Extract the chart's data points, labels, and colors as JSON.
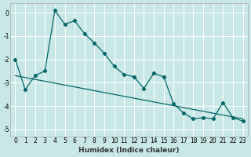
{
  "xlabel": "Humidex (Indice chaleur)",
  "background_color": "#c8e8e8",
  "grid_color": "#ffffff",
  "line_color": "#006666",
  "xlim": [
    -0.5,
    23.5
  ],
  "ylim": [
    -5.3,
    0.4
  ],
  "yticks": [
    0,
    -1,
    -2,
    -3,
    -4,
    -5
  ],
  "xticks": [
    0,
    1,
    2,
    3,
    4,
    5,
    6,
    7,
    8,
    9,
    10,
    11,
    12,
    13,
    14,
    15,
    16,
    17,
    18,
    19,
    20,
    21,
    22,
    23
  ],
  "curve1_x": [
    0,
    1,
    2,
    3,
    4,
    5,
    6,
    7,
    8,
    9,
    10,
    11,
    12,
    13,
    14,
    15,
    16,
    17,
    18,
    19,
    20,
    21,
    22,
    23
  ],
  "curve1_y": [
    -2.0,
    -3.3,
    -2.7,
    -2.5,
    0.1,
    -0.5,
    -0.35,
    -0.9,
    -1.3,
    -1.75,
    -2.3,
    -2.65,
    -2.75,
    -3.25,
    -2.6,
    -2.75,
    -3.9,
    -4.3,
    -4.55,
    -4.5,
    -4.55,
    -3.85,
    -4.5,
    -4.65
  ],
  "curve2_x": [
    0,
    23
  ],
  "curve2_y": [
    -2.7,
    -4.55
  ],
  "tick_fontsize": 5.5,
  "xlabel_fontsize": 6.5
}
